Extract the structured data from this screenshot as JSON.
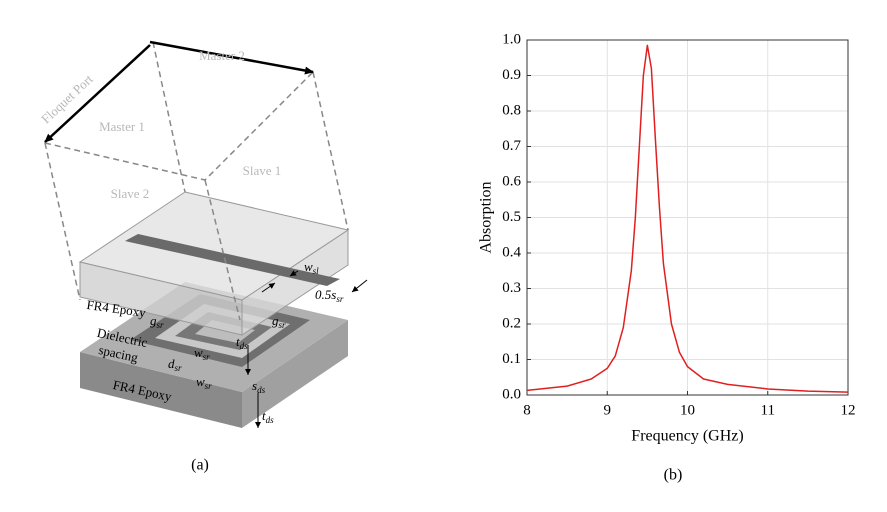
{
  "diagram": {
    "port": "Floquet Port",
    "walls": [
      "Master 1",
      "Master 2",
      "Slave 1",
      "Slave 2"
    ],
    "layers": {
      "top": "FR4 Epoxy",
      "middle": [
        "Dielectric",
        "spacing"
      ],
      "bottom": "FR4 Epoxy"
    },
    "dimensions": [
      {
        "symbol": "w",
        "sub": "sl"
      },
      {
        "symbol": "0.5s",
        "sub": "sr"
      },
      {
        "symbol": "g",
        "sub": "sr"
      },
      {
        "symbol": "t",
        "sub": "ds"
      },
      {
        "symbol": "g",
        "sub": "sr"
      },
      {
        "symbol": "w",
        "sub": "sr"
      },
      {
        "symbol": "d",
        "sub": "sr"
      },
      {
        "symbol": "w",
        "sub": "sr"
      },
      {
        "symbol": "s",
        "sub": "ds"
      },
      {
        "symbol": "t",
        "sub": "ds"
      }
    ]
  },
  "captions": [
    "(a)",
    "(b)"
  ],
  "chart_data": {
    "type": "line",
    "xlabel": "Frequency (GHz)",
    "ylabel": "Absorption",
    "x": [
      8,
      8.5,
      8.8,
      9,
      9.1,
      9.2,
      9.3,
      9.35,
      9.4,
      9.45,
      9.5,
      9.55,
      9.6,
      9.65,
      9.7,
      9.8,
      9.9,
      10,
      10.2,
      10.5,
      11,
      11.5,
      12
    ],
    "values": [
      0.013,
      0.025,
      0.045,
      0.075,
      0.11,
      0.19,
      0.35,
      0.5,
      0.7,
      0.9,
      0.985,
      0.92,
      0.72,
      0.53,
      0.37,
      0.2,
      0.12,
      0.08,
      0.045,
      0.03,
      0.017,
      0.011,
      0.008
    ],
    "color": "#e02020",
    "xlim": [
      8,
      12
    ],
    "xticks": [
      8,
      9,
      10,
      11,
      12
    ],
    "ylim": [
      0,
      1
    ],
    "yticks": [
      {
        "value": 0,
        "label": "0.0"
      },
      0.1,
      0.2,
      0.3,
      0.4,
      0.5,
      0.6,
      0.7,
      0.8,
      0.9,
      {
        "value": 1,
        "label": "1.0"
      }
    ],
    "grid": true
  }
}
